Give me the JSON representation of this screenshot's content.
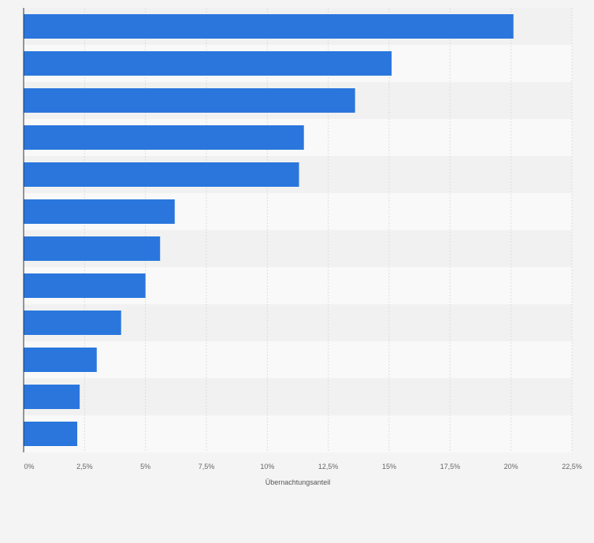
{
  "chart_data": {
    "type": "bar",
    "orientation": "horizontal",
    "title": "",
    "xlabel": "Übernachtungsanteil",
    "ylabel": "",
    "categories": [
      "",
      "",
      "",
      "",
      "",
      "",
      "",
      "",
      "",
      "",
      "",
      ""
    ],
    "values": [
      20.1,
      15.1,
      13.6,
      11.5,
      11.3,
      6.2,
      5.6,
      5.0,
      4.0,
      3.0,
      2.3,
      2.2
    ],
    "xlim": [
      0,
      22.5
    ],
    "ticks": [
      0,
      2.5,
      5,
      7.5,
      10,
      12.5,
      15,
      17.5,
      20,
      22.5
    ],
    "tick_labels": [
      "0%",
      "2,5%",
      "5%",
      "7,5%",
      "10%",
      "12,5%",
      "15%",
      "17,5%",
      "20%",
      "22,5%"
    ],
    "grid": true,
    "colors": {
      "bar": "#2a76dd",
      "band_light": "#f9f9f9",
      "band_dark": "#f1f1f1",
      "grid": "#dddddd",
      "axis": "#333333",
      "background": "#f4f4f4"
    }
  }
}
